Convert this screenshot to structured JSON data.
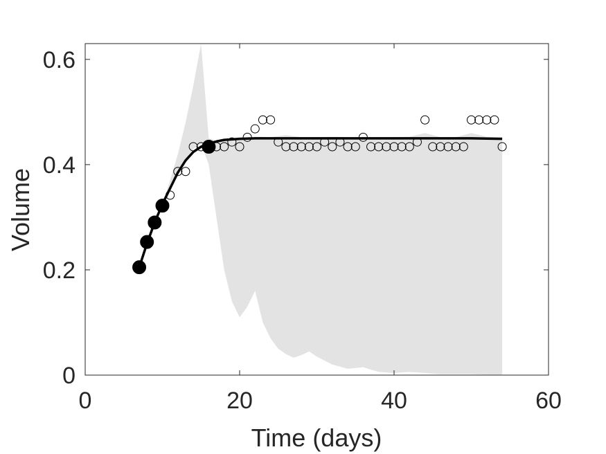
{
  "chart_data": {
    "type": "scatter",
    "xlabel": "Time (days)",
    "ylabel": "Volume",
    "xlim": [
      0,
      60
    ],
    "ylim": [
      0,
      0.63
    ],
    "xticks": [
      0,
      20,
      40,
      60
    ],
    "yticks": [
      0,
      0.2,
      0.4,
      0.6
    ],
    "ytick_labels": [
      "0",
      "0.2",
      "0.4",
      "0.6"
    ],
    "grid": false,
    "colors": {
      "band": "#e3e3e3",
      "line": "#000000",
      "axis": "#262626"
    },
    "band": {
      "x": [
        7,
        8,
        9,
        10,
        11,
        12,
        13,
        14,
        15,
        16,
        17,
        18,
        19,
        20,
        21,
        22,
        23,
        24,
        25,
        26,
        27,
        28,
        29,
        30,
        32,
        34,
        36,
        38,
        40,
        42,
        44,
        46,
        48,
        50,
        52,
        54
      ],
      "upper": [
        0.205,
        0.255,
        0.29,
        0.325,
        0.37,
        0.42,
        0.48,
        0.55,
        0.63,
        0.45,
        0.445,
        0.448,
        0.45,
        0.452,
        0.452,
        0.453,
        0.453,
        0.452,
        0.454,
        0.456,
        0.454,
        0.452,
        0.45,
        0.452,
        0.453,
        0.452,
        0.451,
        0.452,
        0.452,
        0.453,
        0.46,
        0.452,
        0.452,
        0.46,
        0.453,
        0.452
      ],
      "lower": [
        0.205,
        0.255,
        0.29,
        0.325,
        0.36,
        0.39,
        0.41,
        0.43,
        0.44,
        0.4,
        0.3,
        0.2,
        0.14,
        0.11,
        0.13,
        0.16,
        0.1,
        0.07,
        0.05,
        0.04,
        0.033,
        0.038,
        0.045,
        0.035,
        0.02,
        0.012,
        0.015,
        0.006,
        0.004,
        0.006,
        0.004,
        0.002,
        0.002,
        0.002,
        0.001,
        0.001
      ]
    },
    "fit": {
      "x": [
        7,
        8,
        9,
        10,
        11,
        12,
        13,
        14,
        15,
        16,
        17,
        18,
        20,
        22,
        24,
        26,
        30,
        35,
        40,
        45,
        50,
        54
      ],
      "y": [
        0.205,
        0.25,
        0.29,
        0.325,
        0.355,
        0.385,
        0.408,
        0.424,
        0.434,
        0.44,
        0.444,
        0.447,
        0.449,
        0.45,
        0.45,
        0.45,
        0.45,
        0.45,
        0.45,
        0.45,
        0.45,
        0.449
      ]
    },
    "fitted_points": {
      "x": [
        7,
        8,
        9,
        10,
        16
      ],
      "y": [
        0.205,
        0.253,
        0.29,
        0.322,
        0.434
      ]
    },
    "observed_points": {
      "x": [
        11,
        12,
        13,
        14,
        15,
        16,
        17,
        18,
        19,
        20,
        21,
        22,
        23,
        24,
        25,
        26,
        27,
        28,
        29,
        30,
        31,
        32,
        33,
        34,
        35,
        36,
        37,
        38,
        39,
        40,
        41,
        42,
        43,
        44,
        45,
        46,
        47,
        48,
        49,
        50,
        51,
        52,
        53,
        54
      ],
      "y": [
        0.342,
        0.387,
        0.387,
        0.434,
        0.434,
        0.434,
        0.434,
        0.434,
        0.443,
        0.434,
        0.452,
        0.468,
        0.485,
        0.485,
        0.443,
        0.434,
        0.434,
        0.434,
        0.434,
        0.434,
        0.443,
        0.434,
        0.443,
        0.434,
        0.434,
        0.452,
        0.434,
        0.434,
        0.434,
        0.434,
        0.434,
        0.434,
        0.443,
        0.485,
        0.434,
        0.434,
        0.434,
        0.434,
        0.434,
        0.485,
        0.485,
        0.485,
        0.485,
        0.434
      ]
    }
  }
}
